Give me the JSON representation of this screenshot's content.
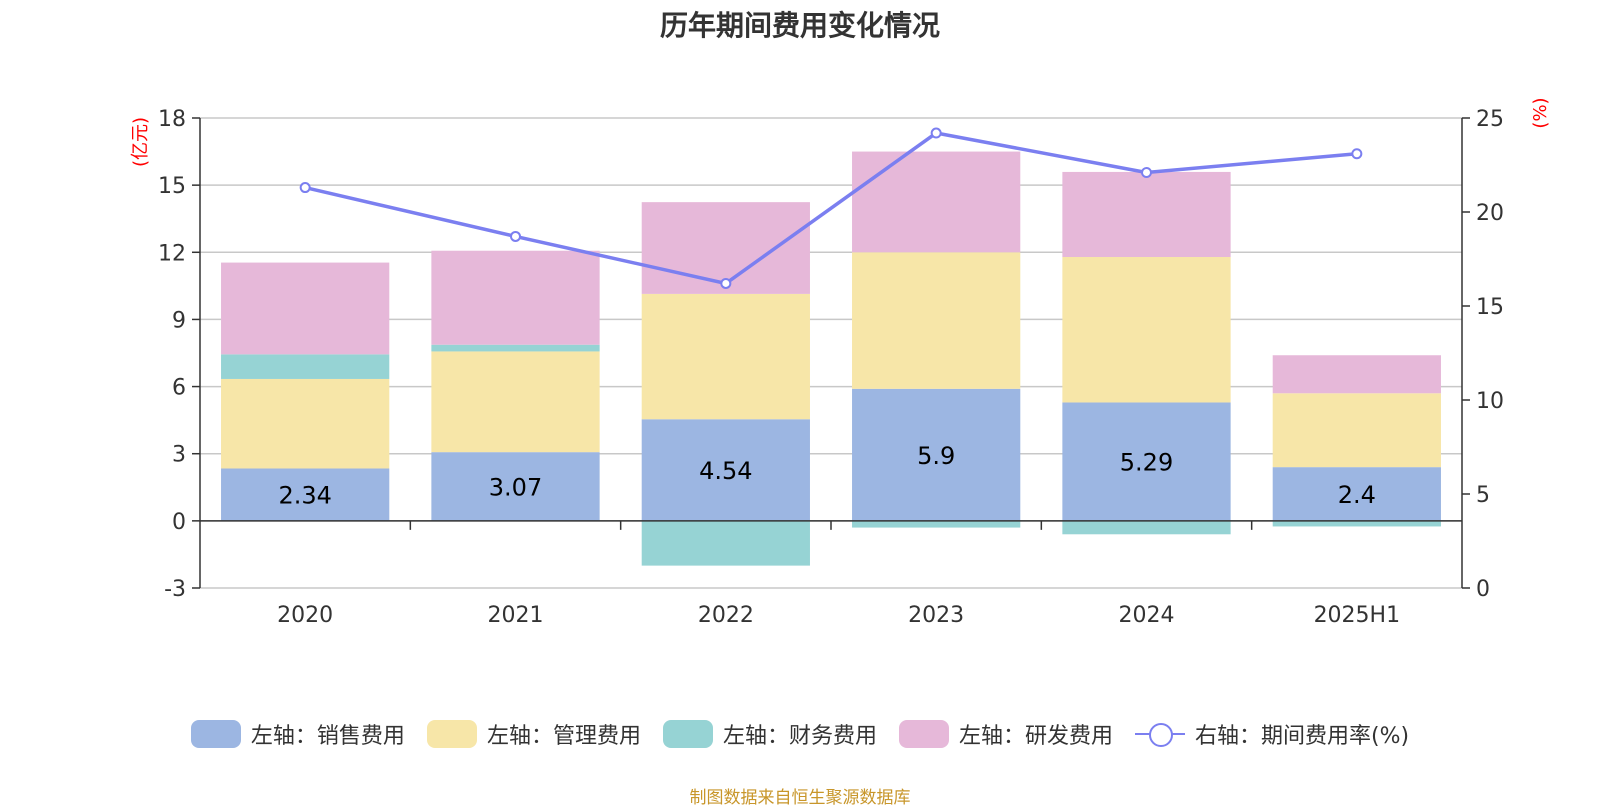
{
  "chart_data": {
    "type": "bar",
    "title": "历年期间费用变化情况",
    "left_unit": "(亿元)",
    "right_unit": "(%)",
    "categories": [
      "2020",
      "2021",
      "2022",
      "2023",
      "2024",
      "2025H1"
    ],
    "y_left": {
      "ticks": [
        "18",
        "15",
        "12",
        "9",
        "6",
        "3",
        "0",
        "-3"
      ],
      "range": [
        -3,
        18
      ]
    },
    "y_right": {
      "ticks": [
        "25",
        "20",
        "15",
        "10",
        "5",
        "0"
      ],
      "range": [
        0,
        25
      ]
    },
    "series": [
      {
        "name": "左轴：销售费用",
        "kind": "bar",
        "color": "#9cb6e2",
        "values": [
          2.34,
          3.07,
          4.54,
          5.9,
          5.29,
          2.4
        ],
        "labels": [
          "2.34",
          "3.07",
          "4.54",
          "5.9",
          "5.29",
          "2.4"
        ]
      },
      {
        "name": "左轴：管理费用",
        "kind": "bar",
        "color": "#f7e6a8",
        "values": [
          4.0,
          4.5,
          5.6,
          6.1,
          6.5,
          3.3
        ]
      },
      {
        "name": "左轴：财务费用",
        "kind": "bar",
        "color": "#96d3d4",
        "values": [
          1.1,
          0.3,
          -2.0,
          -0.3,
          -0.6,
          -0.25
        ]
      },
      {
        "name": "左轴：研发费用",
        "kind": "bar",
        "color": "#e6b8d9",
        "values": [
          4.1,
          4.2,
          4.1,
          4.5,
          3.8,
          1.7
        ]
      },
      {
        "name": "右轴：期间费用率(%)",
        "kind": "line",
        "color": "#7b7ff0",
        "axis": "right",
        "values": [
          21.3,
          18.7,
          16.2,
          24.2,
          22.1,
          23.1
        ]
      }
    ]
  },
  "source": "制图数据来自恒生聚源数据库"
}
